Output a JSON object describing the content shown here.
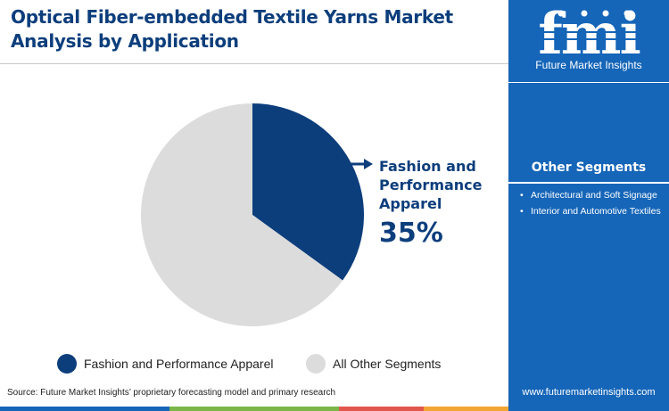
{
  "header": {
    "title": "Optical Fiber-embedded Textile Yarns Market Analysis by Application"
  },
  "chart_data": {
    "type": "pie",
    "slices": [
      {
        "label": "Fashion and Performance Apparel",
        "value": 35,
        "color": "#0d3e7c"
      },
      {
        "label": "All Other Segments",
        "value": 65,
        "color": "#dcdcdc"
      }
    ],
    "callout": {
      "label": "Fashion and Performance Apparel",
      "value_text": "35%"
    },
    "legend": {
      "position": "bottom",
      "items": [
        "Fashion and Performance Apparel",
        "All Other Segments"
      ]
    }
  },
  "sidebar": {
    "logo_text": "fmi",
    "logo_tagline": "Future Market Insights",
    "other_segments_title": "Other Segments",
    "other_segments": [
      "Architectural and Soft Signage",
      "Interior and Automotive Textiles"
    ],
    "website": "www.futuremarketinsights.com"
  },
  "footer": {
    "source": "Source: Future Market Insights’ proprietary forecasting model and primary research"
  },
  "colors": {
    "accent_dark_blue": "#0d3e7c",
    "panel_blue": "#1565b8",
    "slice_grey": "#dcdcdc",
    "bottom_bar": [
      "#1565b8",
      "#7ab648",
      "#e2574c",
      "#f3a533"
    ]
  }
}
